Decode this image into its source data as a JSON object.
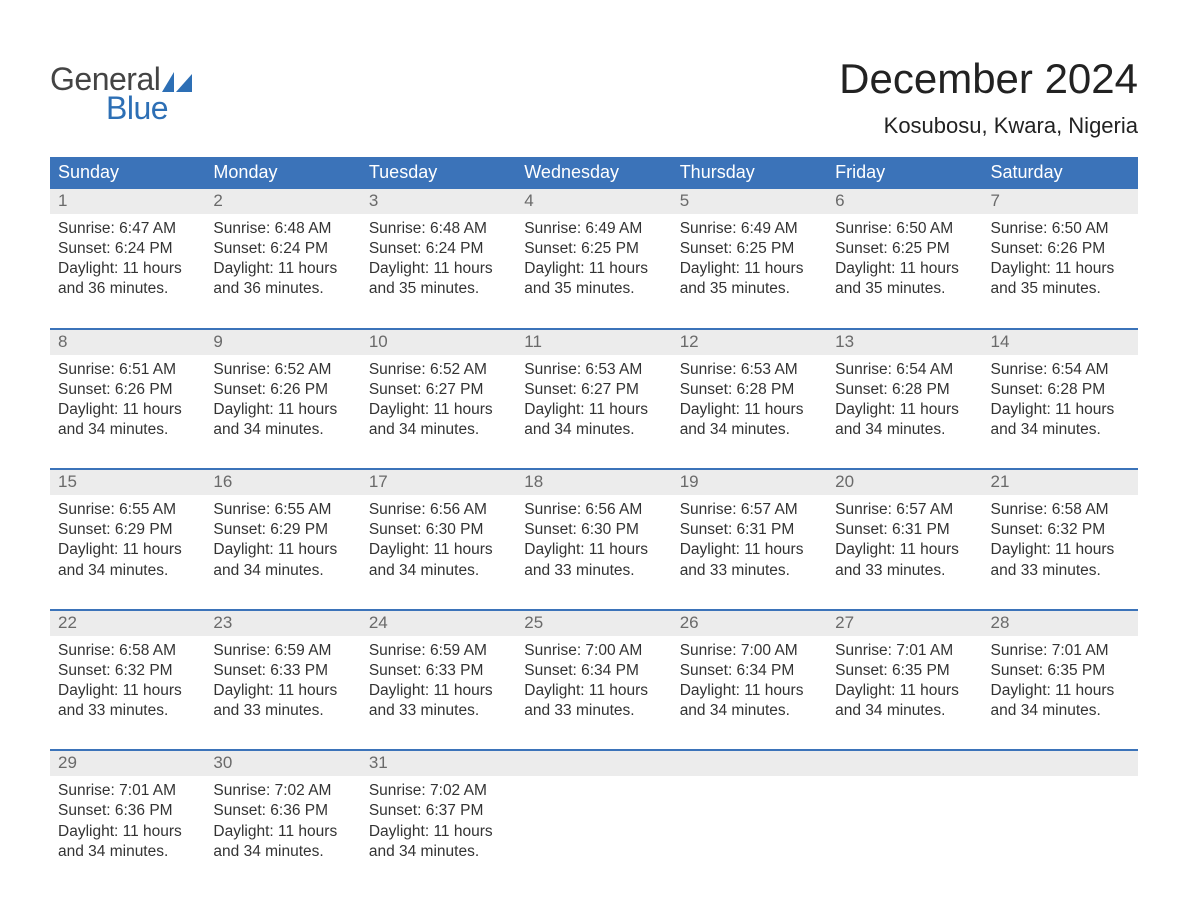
{
  "logo": {
    "general": "General",
    "blue": "Blue",
    "flag_color": "#2d6fb5"
  },
  "title": "December 2024",
  "location": "Kosubosu, Kwara, Nigeria",
  "colors": {
    "header_bg": "#3b73b9",
    "header_text": "#ffffff",
    "daynum_bg": "#ececec",
    "daynum_text": "#6a6a6a",
    "body_text": "#333333",
    "accent": "#3b73b9",
    "page_bg": "#ffffff"
  },
  "day_headers": [
    "Sunday",
    "Monday",
    "Tuesday",
    "Wednesday",
    "Thursday",
    "Friday",
    "Saturday"
  ],
  "weeks": [
    [
      {
        "n": "1",
        "sr": "Sunrise: 6:47 AM",
        "ss": "Sunset: 6:24 PM",
        "d1": "Daylight: 11 hours",
        "d2": "and 36 minutes."
      },
      {
        "n": "2",
        "sr": "Sunrise: 6:48 AM",
        "ss": "Sunset: 6:24 PM",
        "d1": "Daylight: 11 hours",
        "d2": "and 36 minutes."
      },
      {
        "n": "3",
        "sr": "Sunrise: 6:48 AM",
        "ss": "Sunset: 6:24 PM",
        "d1": "Daylight: 11 hours",
        "d2": "and 35 minutes."
      },
      {
        "n": "4",
        "sr": "Sunrise: 6:49 AM",
        "ss": "Sunset: 6:25 PM",
        "d1": "Daylight: 11 hours",
        "d2": "and 35 minutes."
      },
      {
        "n": "5",
        "sr": "Sunrise: 6:49 AM",
        "ss": "Sunset: 6:25 PM",
        "d1": "Daylight: 11 hours",
        "d2": "and 35 minutes."
      },
      {
        "n": "6",
        "sr": "Sunrise: 6:50 AM",
        "ss": "Sunset: 6:25 PM",
        "d1": "Daylight: 11 hours",
        "d2": "and 35 minutes."
      },
      {
        "n": "7",
        "sr": "Sunrise: 6:50 AM",
        "ss": "Sunset: 6:26 PM",
        "d1": "Daylight: 11 hours",
        "d2": "and 35 minutes."
      }
    ],
    [
      {
        "n": "8",
        "sr": "Sunrise: 6:51 AM",
        "ss": "Sunset: 6:26 PM",
        "d1": "Daylight: 11 hours",
        "d2": "and 34 minutes."
      },
      {
        "n": "9",
        "sr": "Sunrise: 6:52 AM",
        "ss": "Sunset: 6:26 PM",
        "d1": "Daylight: 11 hours",
        "d2": "and 34 minutes."
      },
      {
        "n": "10",
        "sr": "Sunrise: 6:52 AM",
        "ss": "Sunset: 6:27 PM",
        "d1": "Daylight: 11 hours",
        "d2": "and 34 minutes."
      },
      {
        "n": "11",
        "sr": "Sunrise: 6:53 AM",
        "ss": "Sunset: 6:27 PM",
        "d1": "Daylight: 11 hours",
        "d2": "and 34 minutes."
      },
      {
        "n": "12",
        "sr": "Sunrise: 6:53 AM",
        "ss": "Sunset: 6:28 PM",
        "d1": "Daylight: 11 hours",
        "d2": "and 34 minutes."
      },
      {
        "n": "13",
        "sr": "Sunrise: 6:54 AM",
        "ss": "Sunset: 6:28 PM",
        "d1": "Daylight: 11 hours",
        "d2": "and 34 minutes."
      },
      {
        "n": "14",
        "sr": "Sunrise: 6:54 AM",
        "ss": "Sunset: 6:28 PM",
        "d1": "Daylight: 11 hours",
        "d2": "and 34 minutes."
      }
    ],
    [
      {
        "n": "15",
        "sr": "Sunrise: 6:55 AM",
        "ss": "Sunset: 6:29 PM",
        "d1": "Daylight: 11 hours",
        "d2": "and 34 minutes."
      },
      {
        "n": "16",
        "sr": "Sunrise: 6:55 AM",
        "ss": "Sunset: 6:29 PM",
        "d1": "Daylight: 11 hours",
        "d2": "and 34 minutes."
      },
      {
        "n": "17",
        "sr": "Sunrise: 6:56 AM",
        "ss": "Sunset: 6:30 PM",
        "d1": "Daylight: 11 hours",
        "d2": "and 34 minutes."
      },
      {
        "n": "18",
        "sr": "Sunrise: 6:56 AM",
        "ss": "Sunset: 6:30 PM",
        "d1": "Daylight: 11 hours",
        "d2": "and 33 minutes."
      },
      {
        "n": "19",
        "sr": "Sunrise: 6:57 AM",
        "ss": "Sunset: 6:31 PM",
        "d1": "Daylight: 11 hours",
        "d2": "and 33 minutes."
      },
      {
        "n": "20",
        "sr": "Sunrise: 6:57 AM",
        "ss": "Sunset: 6:31 PM",
        "d1": "Daylight: 11 hours",
        "d2": "and 33 minutes."
      },
      {
        "n": "21",
        "sr": "Sunrise: 6:58 AM",
        "ss": "Sunset: 6:32 PM",
        "d1": "Daylight: 11 hours",
        "d2": "and 33 minutes."
      }
    ],
    [
      {
        "n": "22",
        "sr": "Sunrise: 6:58 AM",
        "ss": "Sunset: 6:32 PM",
        "d1": "Daylight: 11 hours",
        "d2": "and 33 minutes."
      },
      {
        "n": "23",
        "sr": "Sunrise: 6:59 AM",
        "ss": "Sunset: 6:33 PM",
        "d1": "Daylight: 11 hours",
        "d2": "and 33 minutes."
      },
      {
        "n": "24",
        "sr": "Sunrise: 6:59 AM",
        "ss": "Sunset: 6:33 PM",
        "d1": "Daylight: 11 hours",
        "d2": "and 33 minutes."
      },
      {
        "n": "25",
        "sr": "Sunrise: 7:00 AM",
        "ss": "Sunset: 6:34 PM",
        "d1": "Daylight: 11 hours",
        "d2": "and 33 minutes."
      },
      {
        "n": "26",
        "sr": "Sunrise: 7:00 AM",
        "ss": "Sunset: 6:34 PM",
        "d1": "Daylight: 11 hours",
        "d2": "and 34 minutes."
      },
      {
        "n": "27",
        "sr": "Sunrise: 7:01 AM",
        "ss": "Sunset: 6:35 PM",
        "d1": "Daylight: 11 hours",
        "d2": "and 34 minutes."
      },
      {
        "n": "28",
        "sr": "Sunrise: 7:01 AM",
        "ss": "Sunset: 6:35 PM",
        "d1": "Daylight: 11 hours",
        "d2": "and 34 minutes."
      }
    ],
    [
      {
        "n": "29",
        "sr": "Sunrise: 7:01 AM",
        "ss": "Sunset: 6:36 PM",
        "d1": "Daylight: 11 hours",
        "d2": "and 34 minutes."
      },
      {
        "n": "30",
        "sr": "Sunrise: 7:02 AM",
        "ss": "Sunset: 6:36 PM",
        "d1": "Daylight: 11 hours",
        "d2": "and 34 minutes."
      },
      {
        "n": "31",
        "sr": "Sunrise: 7:02 AM",
        "ss": "Sunset: 6:37 PM",
        "d1": "Daylight: 11 hours",
        "d2": "and 34 minutes."
      },
      {
        "n": "",
        "sr": "",
        "ss": "",
        "d1": "",
        "d2": ""
      },
      {
        "n": "",
        "sr": "",
        "ss": "",
        "d1": "",
        "d2": ""
      },
      {
        "n": "",
        "sr": "",
        "ss": "",
        "d1": "",
        "d2": ""
      },
      {
        "n": "",
        "sr": "",
        "ss": "",
        "d1": "",
        "d2": ""
      }
    ]
  ]
}
